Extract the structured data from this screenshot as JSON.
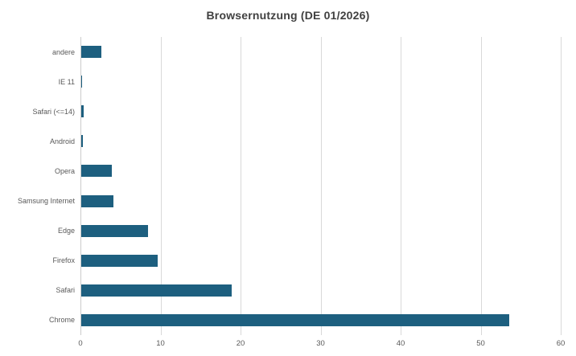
{
  "chart_data": {
    "type": "bar",
    "orientation": "horizontal",
    "title": "Browsernutzung (DE 01/2026)",
    "categories": [
      "andere",
      "IE 11",
      "Safari (<=14)",
      "Android",
      "Opera",
      "Samsung Internet",
      "Edge",
      "Firefox",
      "Safari",
      "Chrome"
    ],
    "values": [
      2.5,
      0.15,
      0.3,
      0.25,
      3.8,
      4.0,
      8.3,
      9.5,
      18.8,
      53.5
    ],
    "xlim": [
      0,
      60
    ],
    "x_ticks": [
      0,
      10,
      20,
      30,
      40,
      50,
      60
    ],
    "xlabel": "",
    "ylabel": "",
    "grid": true,
    "legend_position": "none",
    "colors": {
      "bar": "#1d5f7f",
      "gridline": "#d9d9d9",
      "axis_line": "#cccccc",
      "title_text": "#404040",
      "label_text": "#595959",
      "background": "#ffffff"
    }
  }
}
